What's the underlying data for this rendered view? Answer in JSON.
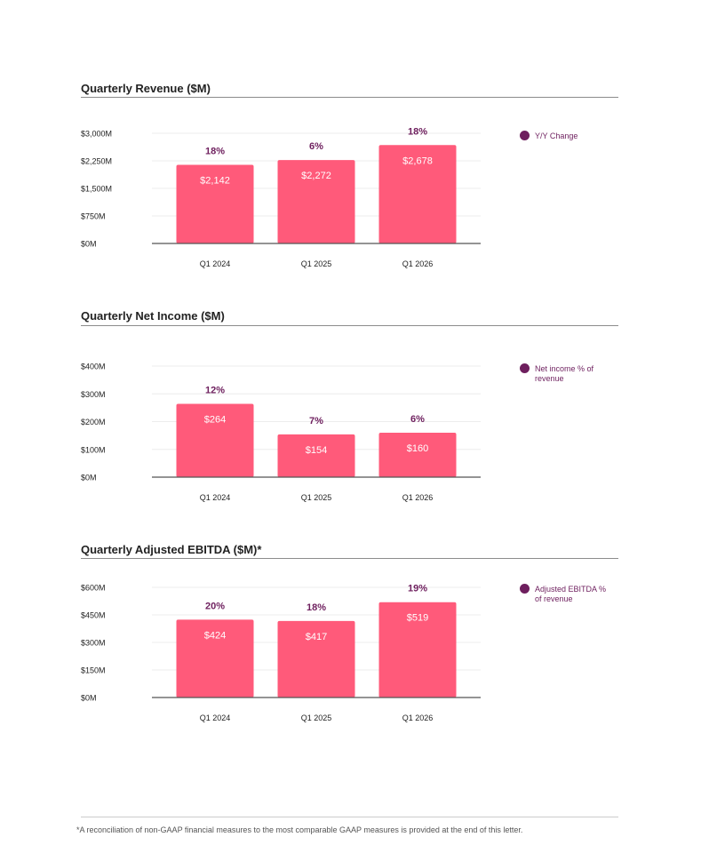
{
  "charts": [
    {
      "title": "Quarterly Revenue ($M)",
      "legend": "Y/Y Change",
      "chart_data": {
        "type": "bar",
        "title": "Quarterly Revenue ($M)",
        "categories": [
          "Q1 2024",
          "Q1 2025",
          "Q1 2026"
        ],
        "values": [
          2142,
          2272,
          2678
        ],
        "value_labels": [
          "$2,142",
          "$2,272",
          "$2,678"
        ],
        "pct_labels": [
          "18%",
          "6%",
          "18%"
        ],
        "yticks": [
          "$0M",
          "$750M",
          "$1,500M",
          "$2,250M",
          "$3,000M"
        ],
        "ylim": [
          0,
          3000
        ],
        "legend": "Y/Y Change",
        "grid": true
      }
    },
    {
      "title": "Quarterly Net Income ($M)",
      "legend": "Net income % of revenue",
      "chart_data": {
        "type": "bar",
        "title": "Quarterly Net Income ($M)",
        "categories": [
          "Q1 2024",
          "Q1 2025",
          "Q1 2026"
        ],
        "values": [
          264,
          154,
          160
        ],
        "value_labels": [
          "$264",
          "$154",
          "$160"
        ],
        "pct_labels": [
          "12%",
          "7%",
          "6%"
        ],
        "yticks": [
          "$0M",
          "$100M",
          "$200M",
          "$300M",
          "$400M"
        ],
        "ylim": [
          0,
          400
        ],
        "legend": "Net income % of revenue",
        "grid": true
      }
    },
    {
      "title": "Quarterly Adjusted EBITDA ($M)*",
      "legend": "Adjusted EBITDA % of revenue",
      "chart_data": {
        "type": "bar",
        "title": "Quarterly Adjusted EBITDA ($M)*",
        "categories": [
          "Q1 2024",
          "Q1 2025",
          "Q1 2026"
        ],
        "values": [
          424,
          417,
          519
        ],
        "value_labels": [
          "$424",
          "$417",
          "$519"
        ],
        "pct_labels": [
          "20%",
          "18%",
          "19%"
        ],
        "yticks": [
          "$0M",
          "$150M",
          "$300M",
          "$450M",
          "$600M"
        ],
        "ylim": [
          0,
          600
        ],
        "legend": "Adjusted EBITDA % of revenue",
        "grid": true
      }
    }
  ],
  "footnote": "*A reconciliation of non-GAAP financial measures to the most comparable GAAP measures is provided at the end of this letter.",
  "colors": {
    "bar": "#ff5a7a",
    "accent": "#6e1f5e",
    "grid": "#ececec",
    "axis": "#555555"
  }
}
